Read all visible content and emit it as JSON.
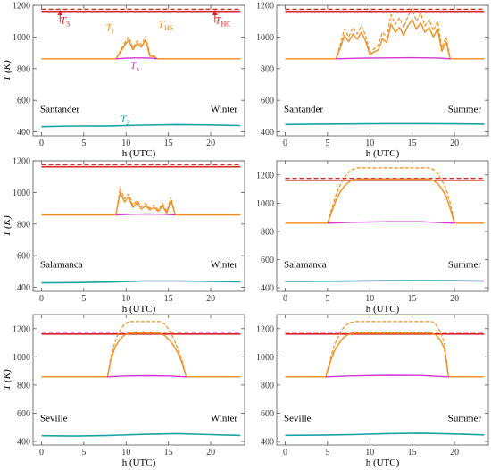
{
  "figure": {
    "axis_y_label": "T (K)",
    "axis_x_label": "h (UTC)",
    "colors": {
      "T3": "#d62728",
      "THC": "#d62728",
      "THS": "#f28e1c",
      "Tr": "#f28e1c",
      "Tx": "#d633d6",
      "T2": "#1aa3a3",
      "frame": "#555555"
    }
  },
  "chart_data": [
    {
      "type": "line",
      "location": "Santander",
      "season": "Winter",
      "xlabel": "h (UTC)",
      "ylabel": "T (K)",
      "xlim": [
        -1,
        24
      ],
      "ylim": [
        375,
        1200
      ],
      "xticks": [
        0,
        5,
        10,
        15,
        20
      ],
      "yticks": [
        400,
        600,
        800,
        1000,
        1200
      ],
      "annotations": [
        {
          "text": "T",
          "sub": "3",
          "color": "#d62728",
          "x": 2.2,
          "y": 1085
        },
        {
          "text": "T",
          "sub": "HC",
          "color": "#d62728",
          "x": 20.5,
          "y": 1085
        },
        {
          "text": "T",
          "sub": "r",
          "color": "#f28e1c",
          "x": 7.6,
          "y": 1040
        },
        {
          "text": "T",
          "sub": "HS",
          "color": "#f28e1c",
          "x": 13.8,
          "y": 1060
        },
        {
          "text": "T",
          "sub": "x",
          "color": "#d633d6",
          "x": 10.5,
          "y": 800
        },
        {
          "text": "T",
          "sub": "2",
          "color": "#1aa3a3",
          "x": 9.3,
          "y": 460
        }
      ],
      "series": [
        {
          "key": "T3",
          "style": "dashed",
          "x": [
            0,
            23.5
          ],
          "y": [
            1175,
            1175
          ]
        },
        {
          "key": "THC",
          "style": "solid",
          "x": [
            0,
            23.5
          ],
          "y": [
            1162,
            1162
          ]
        },
        {
          "key": "THS",
          "style": "dashed",
          "x": [
            0,
            8.8,
            9.2,
            9.8,
            10.3,
            10.8,
            11.3,
            11.8,
            12.3,
            12.8,
            13.3,
            13.7,
            23.5
          ],
          "y": [
            862,
            862,
            900,
            960,
            1000,
            930,
            975,
            950,
            1000,
            890,
            880,
            862,
            862
          ]
        },
        {
          "key": "Tr",
          "style": "solid",
          "x": [
            0,
            8.8,
            9.2,
            9.8,
            10.3,
            10.8,
            11.3,
            11.8,
            12.3,
            12.8,
            13.3,
            13.7,
            23.5
          ],
          "y": [
            862,
            862,
            895,
            945,
            980,
            920,
            960,
            935,
            980,
            880,
            875,
            862,
            862
          ]
        },
        {
          "key": "Tx",
          "style": "solid",
          "x": [
            8.8,
            10,
            11,
            12,
            13,
            13.7
          ],
          "y": [
            862,
            866,
            868,
            868,
            866,
            862
          ]
        },
        {
          "key": "T2",
          "style": "solid",
          "x": [
            0,
            4,
            8,
            12,
            16,
            20,
            23.5
          ],
          "y": [
            433,
            437,
            438,
            443,
            446,
            444,
            440
          ]
        }
      ]
    },
    {
      "type": "line",
      "location": "Santander",
      "season": "Summer",
      "xlabel": "h (UTC)",
      "ylabel": "T (K)",
      "xlim": [
        -1,
        24
      ],
      "ylim": [
        375,
        1200
      ],
      "xticks": [
        0,
        5,
        10,
        15,
        20
      ],
      "yticks": [
        400,
        600,
        800,
        1000,
        1200
      ],
      "annotations": [],
      "series": [
        {
          "key": "T3",
          "style": "dashed",
          "x": [
            0,
            23.5
          ],
          "y": [
            1175,
            1175
          ]
        },
        {
          "key": "THC",
          "style": "solid",
          "x": [
            0,
            23.5
          ],
          "y": [
            1162,
            1162
          ]
        },
        {
          "key": "THS",
          "style": "dashed",
          "x": [
            0,
            6,
            6.5,
            7,
            7.5,
            8,
            8.5,
            9,
            9.5,
            10,
            11,
            11.5,
            12,
            12.5,
            13,
            13.5,
            14,
            14.5,
            15,
            15.5,
            16,
            16.5,
            17,
            17.5,
            18,
            18.5,
            19,
            19.5,
            23.5
          ],
          "y": [
            862,
            862,
            950,
            1050,
            1000,
            1060,
            1020,
            1070,
            1010,
            900,
            950,
            1030,
            1000,
            1140,
            1080,
            1120,
            1060,
            1130,
            1180,
            1100,
            1150,
            1070,
            1110,
            1040,
            1100,
            930,
            1000,
            862,
            862
          ]
        },
        {
          "key": "Tr",
          "style": "solid",
          "x": [
            0,
            6,
            6.5,
            7,
            7.5,
            8,
            8.5,
            9,
            9.5,
            10,
            11,
            11.5,
            12,
            12.5,
            13,
            13.5,
            14,
            14.5,
            15,
            15.5,
            16,
            16.5,
            17,
            17.5,
            18,
            18.5,
            19,
            19.5,
            23.5
          ],
          "y": [
            862,
            862,
            930,
            1010,
            970,
            1020,
            985,
            1030,
            975,
            890,
            920,
            990,
            965,
            1080,
            1030,
            1060,
            1010,
            1070,
            1110,
            1050,
            1090,
            1030,
            1060,
            1000,
            1050,
            910,
            970,
            862,
            862
          ]
        },
        {
          "key": "Tx",
          "style": "solid",
          "x": [
            6,
            9,
            12,
            15,
            18,
            19.5
          ],
          "y": [
            862,
            866,
            868,
            869,
            867,
            862
          ]
        },
        {
          "key": "T2",
          "style": "solid",
          "x": [
            0,
            4,
            8,
            12,
            16,
            20,
            23.5
          ],
          "y": [
            447,
            449,
            450,
            452,
            452,
            451,
            449
          ]
        }
      ]
    },
    {
      "type": "line",
      "location": "Salamanca",
      "season": "Winter",
      "xlabel": "h (UTC)",
      "ylabel": "T (K)",
      "xlim": [
        -1,
        24
      ],
      "ylim": [
        375,
        1200
      ],
      "xticks": [
        0,
        5,
        10,
        15,
        20
      ],
      "yticks": [
        400,
        600,
        800,
        1000,
        1200
      ],
      "annotations": [],
      "series": [
        {
          "key": "T3",
          "style": "dashed",
          "x": [
            0,
            23.5
          ],
          "y": [
            1175,
            1175
          ]
        },
        {
          "key": "THC",
          "style": "solid",
          "x": [
            0,
            23.5
          ],
          "y": [
            1162,
            1162
          ]
        },
        {
          "key": "THS",
          "style": "dashed",
          "x": [
            0,
            8.8,
            9.3,
            9.8,
            10.3,
            10.8,
            11.3,
            11.8,
            12.3,
            12.8,
            13.3,
            13.8,
            14.3,
            14.8,
            15.3,
            15.8,
            23.5
          ],
          "y": [
            858,
            858,
            1030,
            960,
            990,
            920,
            950,
            910,
            930,
            900,
            920,
            890,
            930,
            880,
            970,
            858,
            858
          ]
        },
        {
          "key": "Tr",
          "style": "solid",
          "x": [
            0,
            8.8,
            9.3,
            9.8,
            10.3,
            10.8,
            11.3,
            11.8,
            12.3,
            12.8,
            13.3,
            13.8,
            14.3,
            14.8,
            15.3,
            15.8,
            23.5
          ],
          "y": [
            858,
            858,
            1000,
            940,
            970,
            905,
            935,
            895,
            915,
            890,
            905,
            880,
            915,
            870,
            950,
            858,
            858
          ]
        },
        {
          "key": "Tx",
          "style": "solid",
          "x": [
            8.8,
            10.5,
            12.5,
            14.5,
            15.8
          ],
          "y": [
            858,
            862,
            864,
            862,
            858
          ]
        },
        {
          "key": "T2",
          "style": "solid",
          "x": [
            0,
            4,
            8,
            12,
            16,
            20,
            23.5
          ],
          "y": [
            428,
            430,
            433,
            440,
            440,
            438,
            435
          ]
        }
      ]
    },
    {
      "type": "line",
      "location": "Salamanca",
      "season": "Summer",
      "xlabel": "h (UTC)",
      "ylabel": "T (K)",
      "xlim": [
        -1,
        24
      ],
      "ylim": [
        375,
        1300
      ],
      "xticks": [
        0,
        5,
        10,
        15,
        20
      ],
      "yticks": [
        400,
        600,
        800,
        1000,
        1200
      ],
      "annotations": [],
      "series": [
        {
          "key": "T3",
          "style": "dashed",
          "x": [
            0,
            23.5
          ],
          "y": [
            1175,
            1175
          ]
        },
        {
          "key": "THC",
          "style": "solid",
          "x": [
            0,
            23.5
          ],
          "y": [
            1162,
            1162
          ]
        },
        {
          "key": "THS",
          "style": "dashed",
          "x": [
            0,
            5,
            5.5,
            6,
            6.5,
            7,
            7.5,
            8,
            8.5,
            17,
            17.5,
            18,
            18.5,
            19,
            19.5,
            20,
            23.5
          ],
          "y": [
            858,
            858,
            960,
            1060,
            1130,
            1180,
            1220,
            1240,
            1250,
            1250,
            1240,
            1210,
            1160,
            1100,
            1000,
            858,
            858
          ]
        },
        {
          "key": "Tr",
          "style": "solid",
          "x": [
            0,
            5,
            5.5,
            6,
            6.5,
            7,
            7.5,
            8,
            8.5,
            17,
            17.5,
            18,
            18.5,
            19,
            19.5,
            20,
            23.5
          ],
          "y": [
            858,
            858,
            940,
            1020,
            1080,
            1120,
            1150,
            1165,
            1170,
            1170,
            1160,
            1140,
            1100,
            1050,
            960,
            858,
            858
          ]
        },
        {
          "key": "Tx",
          "style": "solid",
          "x": [
            5,
            8,
            12,
            16,
            20
          ],
          "y": [
            858,
            864,
            868,
            868,
            858
          ]
        },
        {
          "key": "T2",
          "style": "solid",
          "x": [
            0,
            4,
            8,
            12,
            16,
            20,
            23.5
          ],
          "y": [
            445,
            446,
            447,
            450,
            451,
            450,
            447
          ]
        }
      ]
    },
    {
      "type": "line",
      "location": "Seville",
      "season": "Winter",
      "xlabel": "h (UTC)",
      "ylabel": "T (K)",
      "xlim": [
        -1,
        24
      ],
      "ylim": [
        375,
        1300
      ],
      "xticks": [
        0,
        5,
        10,
        15,
        20
      ],
      "yticks": [
        400,
        600,
        800,
        1000,
        1200
      ],
      "annotations": [],
      "series": [
        {
          "key": "T3",
          "style": "dashed",
          "x": [
            0,
            23.5
          ],
          "y": [
            1175,
            1175
          ]
        },
        {
          "key": "THC",
          "style": "solid",
          "x": [
            0,
            23.5
          ],
          "y": [
            1162,
            1162
          ]
        },
        {
          "key": "THS",
          "style": "dashed",
          "x": [
            0,
            7.8,
            8.2,
            8.7,
            9.2,
            9.8,
            10.3,
            14,
            14.6,
            15.1,
            15.6,
            16.1,
            16.6,
            17.1,
            23.5
          ],
          "y": [
            858,
            858,
            1000,
            1110,
            1180,
            1230,
            1250,
            1250,
            1230,
            1190,
            1130,
            1060,
            980,
            858,
            858
          ]
        },
        {
          "key": "Tr",
          "style": "solid",
          "x": [
            0,
            7.8,
            8.2,
            8.7,
            9.2,
            9.8,
            10.3,
            14,
            14.6,
            15.1,
            15.6,
            16.1,
            16.6,
            17.1,
            23.5
          ],
          "y": [
            858,
            858,
            980,
            1070,
            1120,
            1155,
            1168,
            1168,
            1150,
            1120,
            1080,
            1030,
            960,
            858,
            858
          ]
        },
        {
          "key": "Tx",
          "style": "solid",
          "x": [
            7.8,
            10,
            12.5,
            15,
            17.1
          ],
          "y": [
            858,
            864,
            866,
            864,
            858
          ]
        },
        {
          "key": "T2",
          "style": "solid",
          "x": [
            0,
            4,
            8,
            12,
            16,
            20,
            23.5
          ],
          "y": [
            440,
            438,
            442,
            450,
            455,
            448,
            442
          ]
        }
      ]
    },
    {
      "type": "line",
      "location": "Seville",
      "season": "Summer",
      "xlabel": "h (UTC)",
      "ylabel": "T (K)",
      "xlim": [
        -1,
        24
      ],
      "ylim": [
        375,
        1300
      ],
      "xticks": [
        0,
        5,
        10,
        15,
        20
      ],
      "yticks": [
        400,
        600,
        800,
        1000,
        1200
      ],
      "annotations": [],
      "series": [
        {
          "key": "T3",
          "style": "dashed",
          "x": [
            0,
            23.5
          ],
          "y": [
            1175,
            1175
          ]
        },
        {
          "key": "THC",
          "style": "solid",
          "x": [
            0,
            23.5
          ],
          "y": [
            1162,
            1162
          ]
        },
        {
          "key": "THS",
          "style": "dashed",
          "x": [
            0,
            4.8,
            5.3,
            5.8,
            6.3,
            6.8,
            7.3,
            7.8,
            8.3,
            17.3,
            17.8,
            18.3,
            18.8,
            19.3,
            23.5
          ],
          "y": [
            858,
            858,
            980,
            1080,
            1150,
            1200,
            1230,
            1245,
            1250,
            1250,
            1230,
            1180,
            1100,
            858,
            858
          ]
        },
        {
          "key": "Tr",
          "style": "solid",
          "x": [
            0,
            4.8,
            5.3,
            5.8,
            6.3,
            6.8,
            7.3,
            7.8,
            8.3,
            17.3,
            17.8,
            18.3,
            18.8,
            19.3,
            23.5
          ],
          "y": [
            858,
            858,
            960,
            1040,
            1090,
            1130,
            1155,
            1165,
            1168,
            1168,
            1155,
            1120,
            1060,
            858,
            858
          ]
        },
        {
          "key": "Tx",
          "style": "solid",
          "x": [
            4.8,
            8,
            12,
            16,
            19.3
          ],
          "y": [
            858,
            865,
            869,
            868,
            858
          ]
        },
        {
          "key": "T2",
          "style": "solid",
          "x": [
            0,
            4,
            8,
            12,
            16,
            20,
            23.5
          ],
          "y": [
            443,
            444,
            448,
            455,
            458,
            452,
            446
          ]
        }
      ]
    }
  ]
}
